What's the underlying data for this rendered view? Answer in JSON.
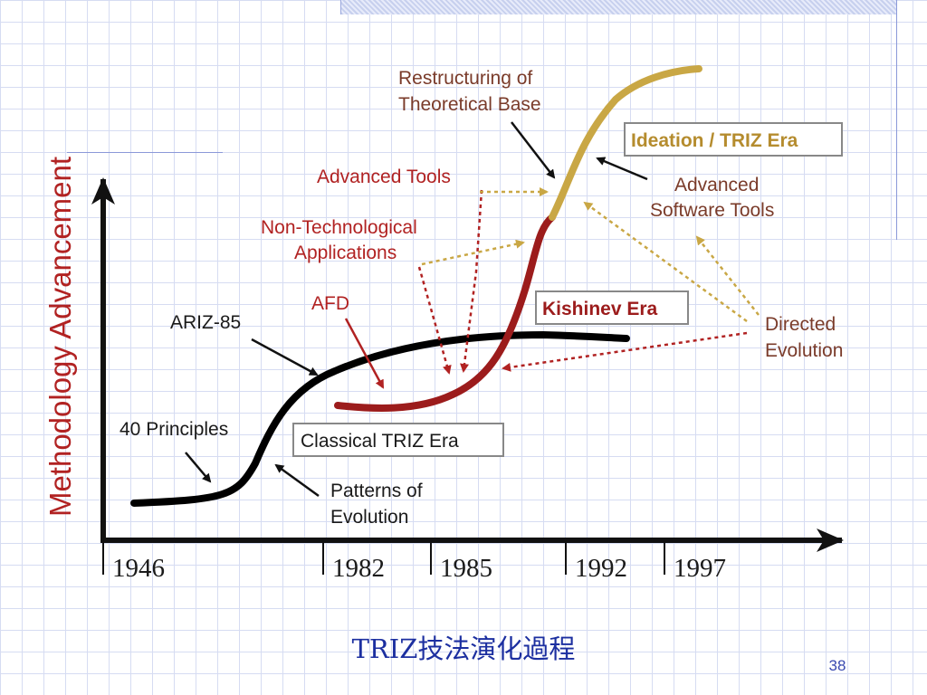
{
  "slide": {
    "title": "TRIZ技法演化過程",
    "page_number": "38"
  },
  "diagram": {
    "y_axis_label": "Methodology Advancement",
    "x_ticks": [
      "1946",
      "1982",
      "1985",
      "1992",
      "1997"
    ],
    "eras": {
      "classical": "Classical TRIZ Era",
      "kishinev": "Kishinev Era",
      "ideation": "Ideation / TRIZ Era"
    },
    "labels": {
      "principles": "40 Principles",
      "ariz": "ARIZ-85",
      "patterns": [
        "Patterns of",
        "Evolution"
      ],
      "afd": "AFD",
      "non_tech": [
        "Non-Technological",
        "Applications"
      ],
      "advanced_tools": "Advanced Tools",
      "restructuring": [
        "Restructuring of",
        "Theoretical Base"
      ],
      "software_tools": [
        "Advanced",
        "Software Tools"
      ],
      "directed": [
        "Directed",
        "Evolution"
      ]
    },
    "colors": {
      "classical_curve": "#000000",
      "kishinev_curve": "#9c1c1c",
      "ideation_curve": "#c9a745",
      "red_label": "#b12222",
      "title": "#1c2fa0"
    }
  }
}
